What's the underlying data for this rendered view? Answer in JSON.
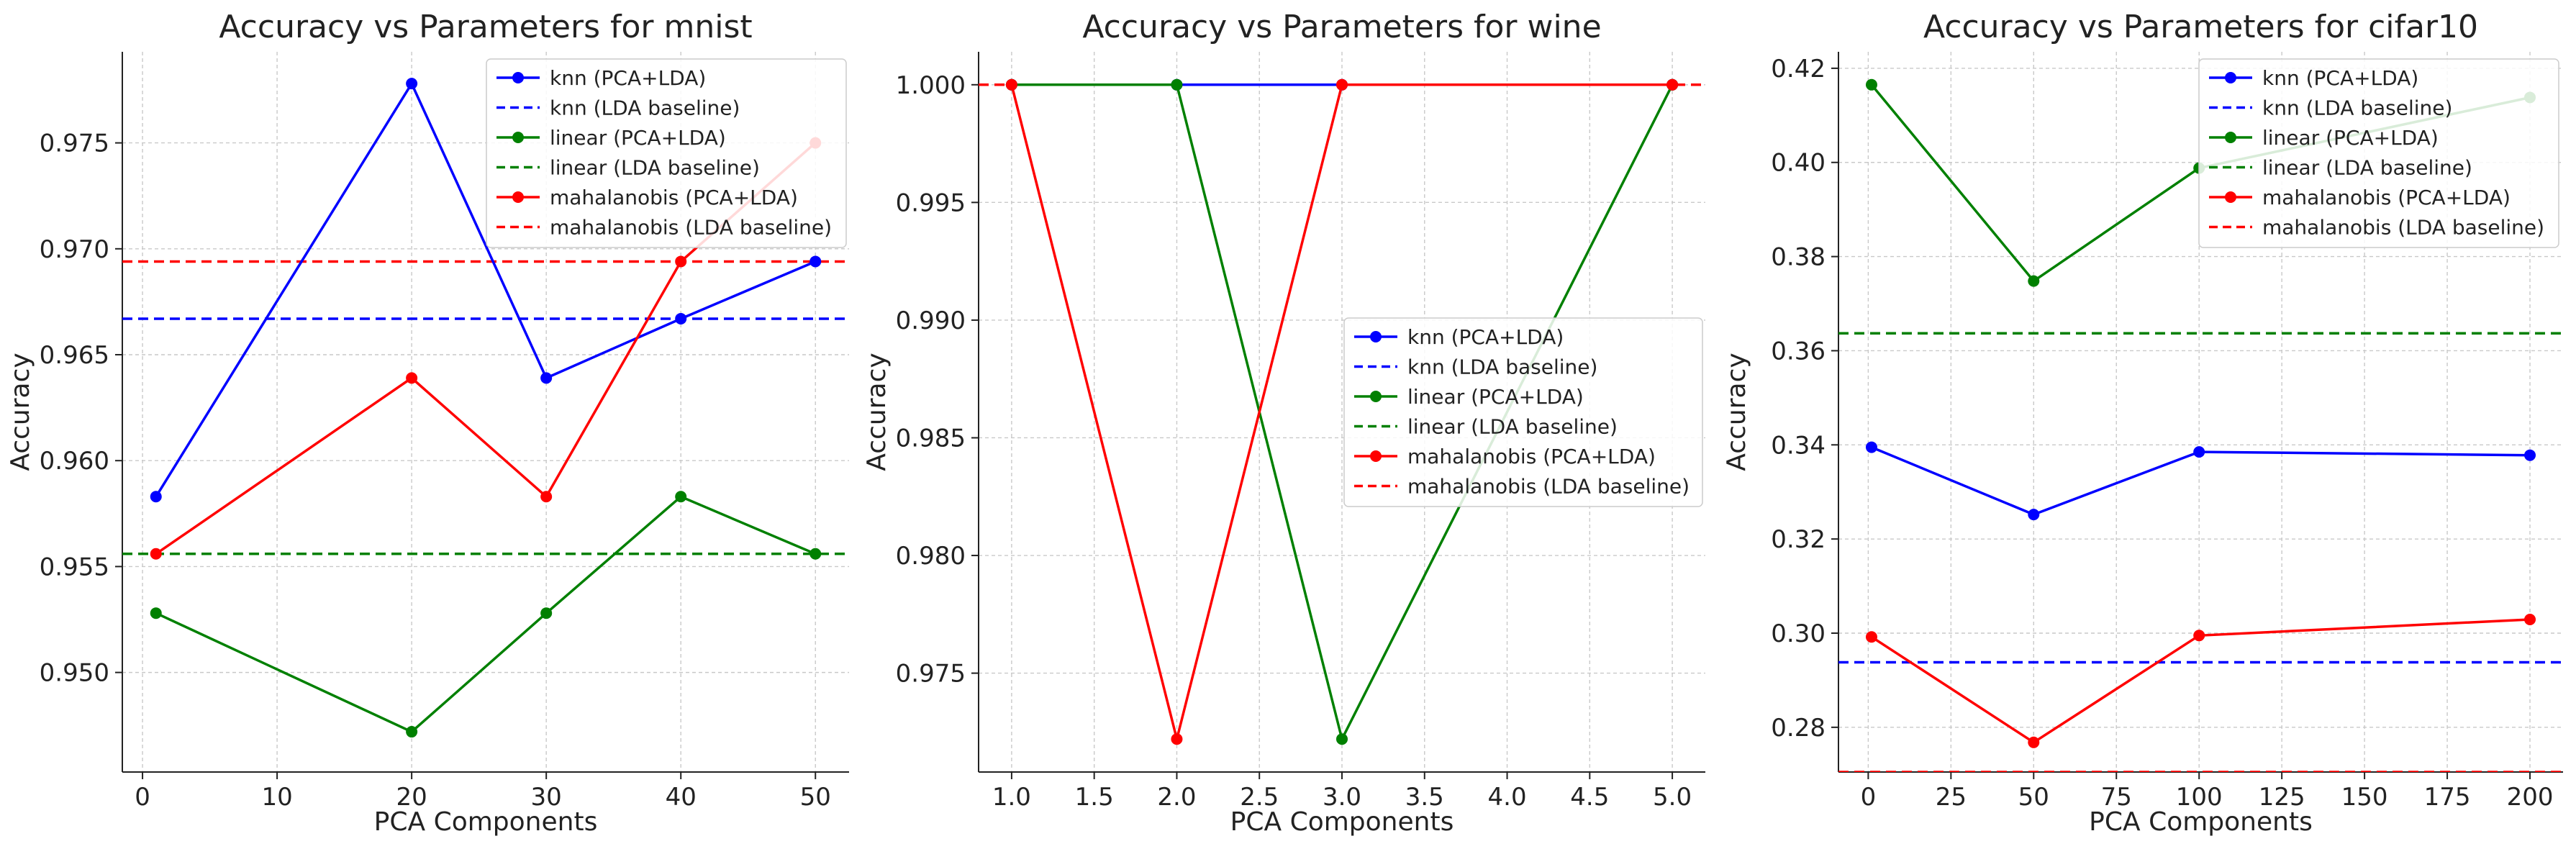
{
  "chart_data": [
    {
      "type": "line",
      "title": "Accuracy vs Parameters for mnist",
      "xlabel": "PCA Components",
      "ylabel": "Accuracy",
      "xlim": [
        -1.5,
        52.5
      ],
      "ylim": [
        0.9453,
        0.9793
      ],
      "xticks": [
        0,
        10,
        20,
        30,
        40,
        50
      ],
      "xtick_labels": [
        "0",
        "10",
        "20",
        "30",
        "40",
        "50"
      ],
      "yticks": [
        0.95,
        0.955,
        0.96,
        0.965,
        0.97,
        0.975
      ],
      "ytick_labels": [
        "0.950",
        "0.955",
        "0.960",
        "0.965",
        "0.970",
        "0.975"
      ],
      "grid": true,
      "legend_position": "top-right",
      "x": [
        1,
        20,
        30,
        40,
        50
      ],
      "series": [
        {
          "name": "knn (PCA+LDA)",
          "color": "#0000ff",
          "style": "solid",
          "marker": true,
          "values": [
            0.9583,
            0.9778,
            0.9639,
            0.9667,
            0.9694
          ]
        },
        {
          "name": "knn (LDA baseline)",
          "color": "#0000ff",
          "style": "dashed",
          "baseline": 0.9667
        },
        {
          "name": "linear (PCA+LDA)",
          "color": "#008000",
          "style": "solid",
          "marker": true,
          "values": [
            0.9528,
            0.9472,
            0.9528,
            0.9583,
            0.9556
          ]
        },
        {
          "name": "linear (LDA baseline)",
          "color": "#008000",
          "style": "dashed",
          "baseline": 0.9556
        },
        {
          "name": "mahalanobis (PCA+LDA)",
          "color": "#ff0000",
          "style": "solid",
          "marker": true,
          "values": [
            0.9556,
            0.9639,
            0.9583,
            0.9694,
            0.975
          ]
        },
        {
          "name": "mahalanobis (LDA baseline)",
          "color": "#ff0000",
          "style": "dashed",
          "baseline": 0.9694
        }
      ]
    },
    {
      "type": "line",
      "title": "Accuracy vs Parameters for wine",
      "xlabel": "PCA Components",
      "ylabel": "Accuracy",
      "xlim": [
        0.8,
        5.2
      ],
      "ylim": [
        0.9708,
        1.0014
      ],
      "xticks": [
        1.0,
        1.5,
        2.0,
        2.5,
        3.0,
        3.5,
        4.0,
        4.5,
        5.0
      ],
      "xtick_labels": [
        "1.0",
        "1.5",
        "2.0",
        "2.5",
        "3.0",
        "3.5",
        "4.0",
        "4.5",
        "5.0"
      ],
      "yticks": [
        0.975,
        0.98,
        0.985,
        0.99,
        0.995,
        1.0
      ],
      "ytick_labels": [
        "0.975",
        "0.980",
        "0.985",
        "0.990",
        "0.995",
        "1.000"
      ],
      "grid": true,
      "legend_position": "center-right",
      "x": [
        1,
        2,
        3,
        5
      ],
      "series": [
        {
          "name": "knn (PCA+LDA)",
          "color": "#0000ff",
          "style": "solid",
          "marker": true,
          "values": [
            1.0,
            1.0,
            1.0,
            1.0
          ]
        },
        {
          "name": "knn (LDA baseline)",
          "color": "#0000ff",
          "style": "dashed",
          "baseline": 1.0
        },
        {
          "name": "linear (PCA+LDA)",
          "color": "#008000",
          "style": "solid",
          "marker": true,
          "values": [
            1.0,
            1.0,
            0.9722,
            1.0
          ]
        },
        {
          "name": "linear (LDA baseline)",
          "color": "#008000",
          "style": "dashed",
          "baseline": 1.0
        },
        {
          "name": "mahalanobis (PCA+LDA)",
          "color": "#ff0000",
          "style": "solid",
          "marker": true,
          "values": [
            1.0,
            0.9722,
            1.0,
            1.0
          ]
        },
        {
          "name": "mahalanobis (LDA baseline)",
          "color": "#ff0000",
          "style": "dashed",
          "baseline": 1.0
        }
      ]
    },
    {
      "type": "line",
      "title": "Accuracy vs Parameters for cifar10",
      "xlabel": "PCA Components",
      "ylabel": "Accuracy",
      "xlim": [
        -9,
        210
      ],
      "ylim": [
        0.2705,
        0.4235
      ],
      "xticks": [
        0,
        25,
        50,
        75,
        100,
        125,
        150,
        175,
        200
      ],
      "xtick_labels": [
        "0",
        "25",
        "50",
        "75",
        "100",
        "125",
        "150",
        "175",
        "200"
      ],
      "yticks": [
        0.28,
        0.3,
        0.32,
        0.34,
        0.36,
        0.38,
        0.4,
        0.42
      ],
      "ytick_labels": [
        "0.28",
        "0.30",
        "0.32",
        "0.34",
        "0.36",
        "0.38",
        "0.40",
        "0.42"
      ],
      "grid": true,
      "legend_position": "top-right",
      "x": [
        1,
        50,
        100,
        200
      ],
      "series": [
        {
          "name": "knn (PCA+LDA)",
          "color": "#0000ff",
          "style": "solid",
          "marker": true,
          "values": [
            0.3395,
            0.3252,
            0.3385,
            0.3378
          ]
        },
        {
          "name": "knn (LDA baseline)",
          "color": "#0000ff",
          "style": "dashed",
          "baseline": 0.2938
        },
        {
          "name": "linear (PCA+LDA)",
          "color": "#008000",
          "style": "solid",
          "marker": true,
          "values": [
            0.4165,
            0.3748,
            0.3988,
            0.4138
          ]
        },
        {
          "name": "linear (LDA baseline)",
          "color": "#008000",
          "style": "dashed",
          "baseline": 0.3637
        },
        {
          "name": "mahalanobis (PCA+LDA)",
          "color": "#ff0000",
          "style": "solid",
          "marker": true,
          "values": [
            0.2992,
            0.2768,
            0.2995,
            0.3029
          ]
        },
        {
          "name": "mahalanobis (LDA baseline)",
          "color": "#ff0000",
          "style": "dashed",
          "baseline": 0.2705
        }
      ]
    }
  ]
}
